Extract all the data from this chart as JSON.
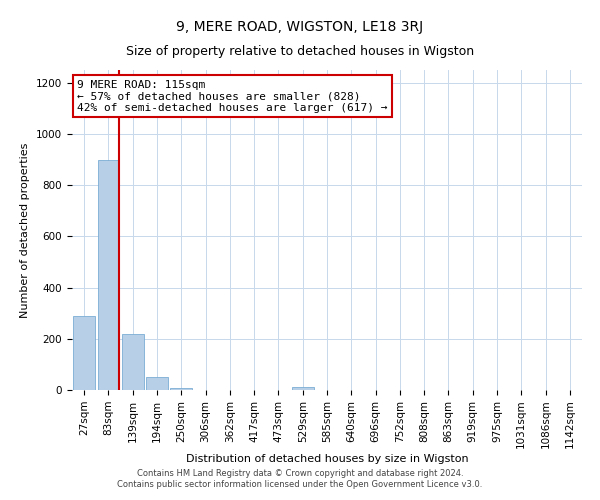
{
  "title": "9, MERE ROAD, WIGSTON, LE18 3RJ",
  "subtitle": "Size of property relative to detached houses in Wigston",
  "bar_labels": [
    "27sqm",
    "83sqm",
    "139sqm",
    "194sqm",
    "250sqm",
    "306sqm",
    "362sqm",
    "417sqm",
    "473sqm",
    "529sqm",
    "585sqm",
    "640sqm",
    "696sqm",
    "752sqm",
    "808sqm",
    "863sqm",
    "919sqm",
    "975sqm",
    "1031sqm",
    "1086sqm",
    "1142sqm"
  ],
  "bar_values": [
    290,
    900,
    220,
    50,
    8,
    0,
    0,
    0,
    0,
    12,
    0,
    0,
    0,
    0,
    0,
    0,
    0,
    0,
    0,
    0,
    0
  ],
  "bar_color": "#b8cfe8",
  "bar_edge_color": "#7aadd4",
  "vline_x_index": 1.42,
  "vline_color": "#cc0000",
  "ylim": [
    0,
    1250
  ],
  "yticks": [
    0,
    200,
    400,
    600,
    800,
    1000,
    1200
  ],
  "xlabel": "Distribution of detached houses by size in Wigston",
  "ylabel": "Number of detached properties",
  "annotation_title": "9 MERE ROAD: 115sqm",
  "annotation_line1": "← 57% of detached houses are smaller (828)",
  "annotation_line2": "42% of semi-detached houses are larger (617) →",
  "annotation_box_color": "#cc0000",
  "footer_line1": "Contains HM Land Registry data © Crown copyright and database right 2024.",
  "footer_line2": "Contains public sector information licensed under the Open Government Licence v3.0.",
  "bg_color": "#ffffff",
  "grid_color": "#c8d8ec",
  "title_fontsize": 10,
  "subtitle_fontsize": 9,
  "axis_label_fontsize": 8,
  "tick_fontsize": 7.5,
  "footer_fontsize": 6
}
